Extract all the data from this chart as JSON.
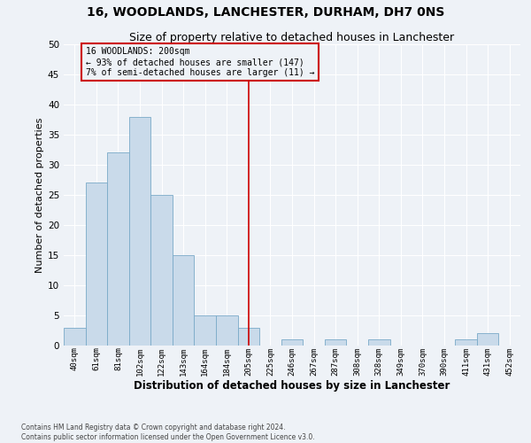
{
  "title": "16, WOODLANDS, LANCHESTER, DURHAM, DH7 0NS",
  "subtitle": "Size of property relative to detached houses in Lanchester",
  "xlabel": "Distribution of detached houses by size in Lanchester",
  "ylabel": "Number of detached properties",
  "bar_labels": [
    "40sqm",
    "61sqm",
    "81sqm",
    "102sqm",
    "122sqm",
    "143sqm",
    "164sqm",
    "184sqm",
    "205sqm",
    "225sqm",
    "246sqm",
    "267sqm",
    "287sqm",
    "308sqm",
    "328sqm",
    "349sqm",
    "370sqm",
    "390sqm",
    "411sqm",
    "431sqm",
    "452sqm"
  ],
  "bar_values": [
    3,
    27,
    32,
    38,
    25,
    15,
    5,
    5,
    3,
    0,
    1,
    0,
    1,
    0,
    1,
    0,
    0,
    0,
    1,
    2,
    0
  ],
  "bar_color": "#c9daea",
  "bar_edge_color": "#7aaac8",
  "ylim": [
    0,
    50
  ],
  "yticks": [
    0,
    5,
    10,
    15,
    20,
    25,
    30,
    35,
    40,
    45,
    50
  ],
  "vline_index": 8,
  "vline_color": "#cc0000",
  "annotation_text": "16 WOODLANDS: 200sqm\n← 93% of detached houses are smaller (147)\n7% of semi-detached houses are larger (11) →",
  "annotation_box_edgecolor": "#cc0000",
  "bg_color": "#eef2f7",
  "grid_color": "#ffffff",
  "title_fontsize": 10,
  "subtitle_fontsize": 9,
  "xlabel_fontsize": 8.5,
  "ylabel_fontsize": 8,
  "footer_line1": "Contains HM Land Registry data © Crown copyright and database right 2024.",
  "footer_line2": "Contains public sector information licensed under the Open Government Licence v3.0."
}
